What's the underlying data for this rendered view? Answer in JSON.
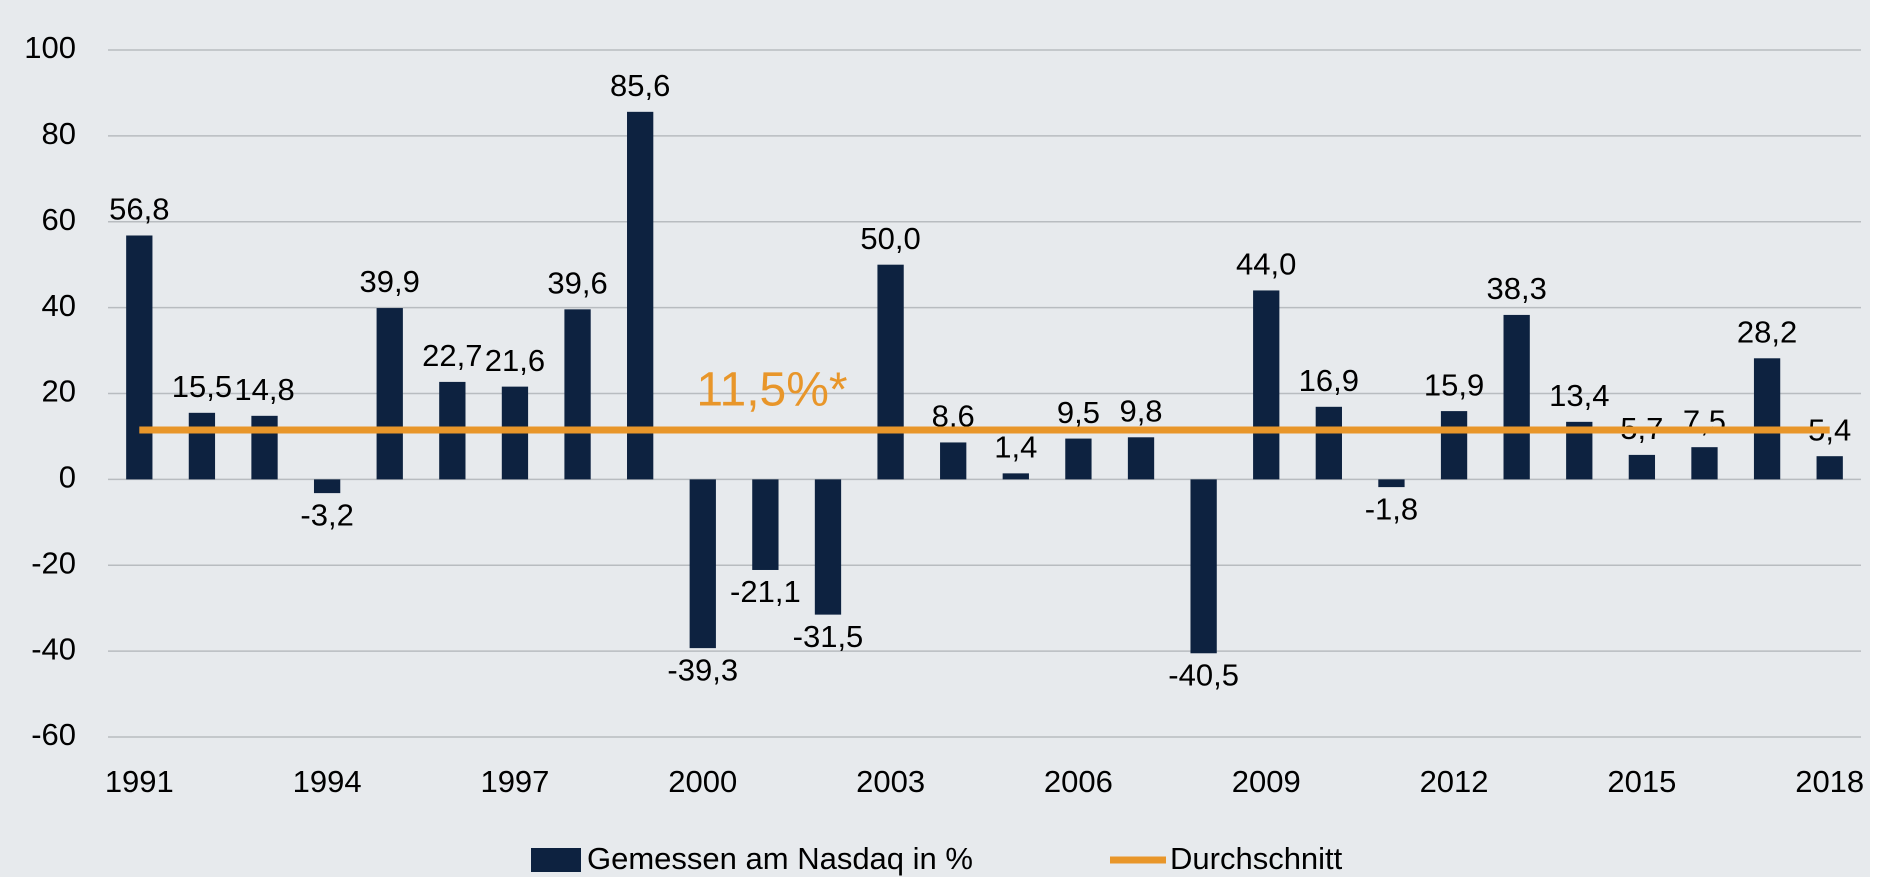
{
  "chart_data": {
    "type": "bar",
    "categories": [
      "1991",
      null,
      null,
      "1994",
      null,
      null,
      "1997",
      null,
      null,
      "2000",
      null,
      null,
      "2003",
      null,
      null,
      "2006",
      null,
      null,
      "2009",
      null,
      null,
      "2012",
      null,
      null,
      "2015",
      null,
      null,
      "2018"
    ],
    "series": [
      {
        "name": "Gemessen am Nasdaq in %",
        "color": "#0d2240",
        "values": [
          56.8,
          15.5,
          14.8,
          -3.2,
          39.9,
          22.7,
          21.6,
          39.6,
          85.6,
          -39.3,
          -21.1,
          -31.5,
          50.0,
          8.6,
          1.4,
          9.5,
          9.8,
          -40.5,
          44.0,
          16.9,
          -1.8,
          15.9,
          38.3,
          13.4,
          5.7,
          7.5,
          28.2,
          5.4
        ],
        "value_labels": [
          "56,8",
          "15,5",
          "14,8",
          "-3,2",
          "39,9",
          "22,7",
          "21,6",
          "39,6",
          "85,6",
          "-39,3",
          "-21,1",
          "-31,5",
          "50,0",
          "8,6",
          "1,4",
          "9,5",
          "9,8",
          "-40,5",
          "44,0",
          "16,9",
          "-1,8",
          "15,9",
          "38,3",
          "13,4",
          "5,7",
          "7,5",
          "28,2",
          "5,4"
        ]
      }
    ],
    "average": {
      "name": "Durchschnitt",
      "color": "#e8962a",
      "value": 11.5,
      "label": "11,5%*"
    },
    "ylim": [
      -60,
      100
    ],
    "yticks": [
      -60,
      -40,
      -20,
      0,
      20,
      40,
      60,
      80,
      100
    ],
    "grid": true,
    "legend": "bottom"
  }
}
